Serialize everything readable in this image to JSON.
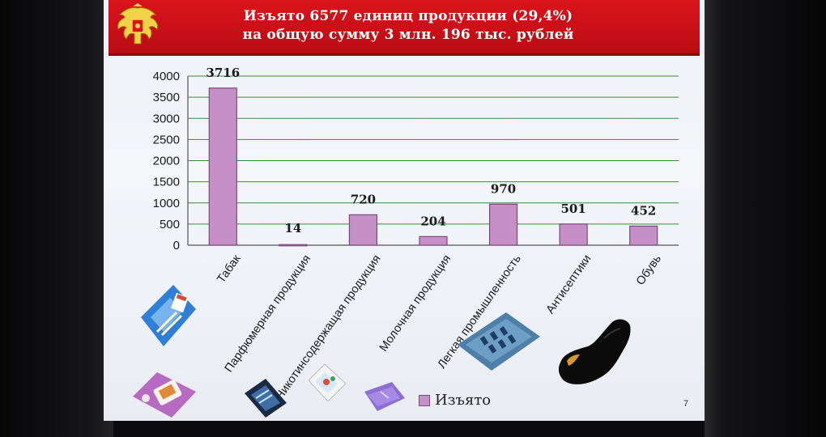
{
  "slide": {
    "title_line1": "Изъято 6577 единиц продукции (29,4%)",
    "title_line2": "на общую сумму 3 млн. 196 тыс. рублей",
    "page_number": "7",
    "legend_label": "Изъято"
  },
  "colors": {
    "banner": "#c80f17",
    "bar_fill": "#c58fc8",
    "bar_stroke": "#7a4a7e",
    "grid": "#3a8a3a"
  },
  "chart_data": {
    "type": "bar",
    "title": "",
    "xlabel": "",
    "ylabel": "",
    "categories": [
      "Табак",
      "Парфюмерная продукция",
      "Никотинсодержащая продукция",
      "Молочная продукция",
      "Легкая промышленность",
      "Антисептики",
      "Обувь"
    ],
    "series": [
      {
        "name": "Изъято",
        "values": [
          3716,
          14,
          720,
          204,
          970,
          501,
          452
        ]
      }
    ],
    "data_labels": [
      "3716",
      "14",
      "720",
      "204",
      "970",
      "501",
      "452"
    ],
    "y_ticks": [
      "0",
      "500",
      "1000",
      "1500",
      "2000",
      "2500",
      "3000",
      "3500",
      "4000"
    ],
    "ylim": [
      0,
      4000
    ],
    "grid": true,
    "legend": "bottom"
  },
  "icons": [
    "cigarettes-image",
    "perfume-image",
    "vape-image",
    "milk-image",
    "textile-image",
    "antiseptic-image",
    "shoe-image"
  ]
}
